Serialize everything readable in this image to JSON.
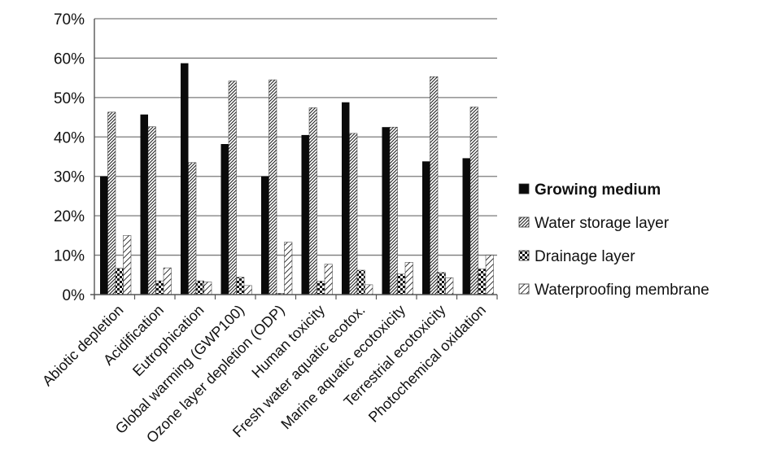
{
  "chart_data": {
    "type": "bar",
    "categories": [
      "Abiotic depletion",
      "Acidification",
      "Eutrophication",
      "Global warming (GWP100)",
      "Ozone layer depletion (ODP)",
      "Human toxicity",
      "Fresh water aquatic ecotox.",
      "Marine aquatic ecotoxicity",
      "Terrestrial ecotoxicity",
      "Photochemical oxidation"
    ],
    "series": [
      {
        "name": "Growing medium",
        "pattern": "solid",
        "values": [
          30,
          45.7,
          58.7,
          38.2,
          30,
          40.5,
          48.8,
          42.5,
          33.8,
          34.6
        ]
      },
      {
        "name": "Water storage layer",
        "pattern": "diagonal-hatch",
        "values": [
          46.3,
          42.6,
          33.5,
          54.2,
          54.5,
          47.4,
          40.9,
          42.5,
          55.3,
          47.6
        ]
      },
      {
        "name": "Drainage layer",
        "pattern": "checker",
        "values": [
          6.7,
          3.5,
          3.5,
          4.4,
          0.3,
          3.4,
          6.2,
          5.2,
          5.6,
          6.5
        ]
      },
      {
        "name": "Waterproofing membrane",
        "pattern": "wide-hatch",
        "values": [
          15,
          6.8,
          3.2,
          2.3,
          13.3,
          7.7,
          2.5,
          8.2,
          4.3,
          10
        ]
      }
    ],
    "yticks": [
      "0%",
      "10%",
      "20%",
      "30%",
      "40%",
      "50%",
      "60%",
      "70%"
    ],
    "ylim": [
      0,
      70
    ],
    "grid": true,
    "legend_position": "right",
    "title": "",
    "xlabel": "",
    "ylabel": ""
  }
}
